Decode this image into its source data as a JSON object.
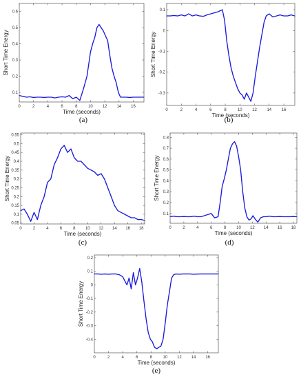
{
  "colors": {
    "series": "#1a1adc",
    "axes": "#555555"
  },
  "chart_data": [
    {
      "type": "line",
      "panel_label": "(a)",
      "xlabel": "Time (seconds)",
      "ylabel": "Short Time Energy",
      "xlim": [
        0,
        17.5
      ],
      "ylim": [
        0.04,
        0.65
      ],
      "xticks": [
        0,
        2,
        4,
        6,
        8,
        10,
        12,
        14,
        16
      ],
      "yticks": [
        0.1,
        0.2,
        0.3,
        0.4,
        0.5,
        0.6
      ],
      "x": [
        0,
        0.5,
        1,
        1.5,
        2,
        2.5,
        3,
        3.5,
        4,
        4.5,
        5,
        5.5,
        6,
        6.5,
        7,
        7.5,
        8,
        8.5,
        9,
        9.5,
        10,
        10.3,
        10.6,
        10.9,
        11.2,
        11.5,
        11.8,
        12.1,
        12.4,
        12.7,
        13,
        13.3,
        13.6,
        13.9,
        14.2,
        14.6,
        15,
        15.5,
        16,
        16.5,
        17,
        17.5
      ],
      "y": [
        0.08,
        0.075,
        0.07,
        0.072,
        0.068,
        0.07,
        0.07,
        0.068,
        0.07,
        0.07,
        0.065,
        0.07,
        0.072,
        0.07,
        0.08,
        0.06,
        0.07,
        0.05,
        0.12,
        0.2,
        0.35,
        0.4,
        0.44,
        0.5,
        0.52,
        0.5,
        0.48,
        0.45,
        0.42,
        0.33,
        0.25,
        0.2,
        0.16,
        0.1,
        0.07,
        0.07,
        0.07,
        0.068,
        0.07,
        0.07,
        0.07,
        0.07
      ]
    },
    {
      "type": "line",
      "panel_label": "(b)",
      "xlabel": "Time (seconds)",
      "ylabel": "Short Time Energy",
      "xlim": [
        0,
        17.5
      ],
      "ylim": [
        -0.36,
        0.13
      ],
      "xticks": [
        0,
        2,
        4,
        6,
        8,
        10,
        12,
        14,
        16
      ],
      "yticks": [
        -0.3,
        -0.2,
        -0.1,
        0,
        0.1
      ],
      "x": [
        0,
        0.5,
        1,
        1.5,
        2,
        2.5,
        3,
        3.5,
        4,
        4.5,
        5,
        5.5,
        6,
        6.5,
        7,
        7.3,
        7.6,
        7.9,
        8.2,
        8.5,
        8.8,
        9.1,
        9.4,
        9.7,
        10,
        10.3,
        10.6,
        10.9,
        11.2,
        11.5,
        11.8,
        12.1,
        12.4,
        12.7,
        13,
        13.3,
        13.6,
        14,
        14.5,
        15,
        15.5,
        16,
        16.5,
        17,
        17.5
      ],
      "y": [
        0.07,
        0.07,
        0.072,
        0.07,
        0.075,
        0.07,
        0.08,
        0.07,
        0.075,
        0.07,
        0.068,
        0.075,
        0.08,
        0.085,
        0.09,
        0.095,
        0.1,
        0.05,
        -0.05,
        -0.12,
        -0.18,
        -0.22,
        -0.25,
        -0.28,
        -0.3,
        -0.31,
        -0.33,
        -0.3,
        -0.32,
        -0.34,
        -0.3,
        -0.22,
        -0.15,
        -0.08,
        -0.02,
        0.04,
        0.07,
        0.08,
        0.065,
        0.07,
        0.075,
        0.07,
        0.07,
        0.075,
        0.07
      ]
    },
    {
      "type": "line",
      "panel_label": "(c)",
      "xlabel": "Time (seconds)",
      "ylabel": "Short Time Energy",
      "xlim": [
        0,
        18.5
      ],
      "ylim": [
        0.045,
        0.56
      ],
      "xticks": [
        0,
        2,
        4,
        6,
        8,
        10,
        12,
        14,
        16,
        18
      ],
      "yticks": [
        0.05,
        0.1,
        0.15,
        0.2,
        0.25,
        0.3,
        0.35,
        0.4,
        0.45,
        0.5,
        0.55
      ],
      "x": [
        0,
        0.5,
        1,
        1.5,
        2,
        2.5,
        3,
        3.5,
        4,
        4.5,
        5,
        5.5,
        6,
        6.5,
        7,
        7.5,
        8,
        8.5,
        9,
        9.5,
        10,
        10.5,
        11,
        11.5,
        12,
        12.5,
        13,
        13.5,
        14,
        14.5,
        15,
        15.5,
        16,
        16.5,
        17,
        17.5,
        18,
        18.5
      ],
      "y": [
        0.12,
        0.13,
        0.1,
        0.06,
        0.11,
        0.07,
        0.15,
        0.2,
        0.28,
        0.3,
        0.38,
        0.42,
        0.47,
        0.49,
        0.45,
        0.47,
        0.42,
        0.4,
        0.4,
        0.38,
        0.36,
        0.35,
        0.34,
        0.32,
        0.33,
        0.3,
        0.25,
        0.2,
        0.15,
        0.12,
        0.11,
        0.1,
        0.09,
        0.08,
        0.08,
        0.07,
        0.07,
        0.065
      ]
    },
    {
      "type": "line",
      "panel_label": "(d)",
      "xlabel": "Time (seconds)",
      "ylabel": "Short Time Energy",
      "xlim": [
        0,
        18.5
      ],
      "ylim": [
        0.01,
        0.84
      ],
      "xticks": [
        0,
        2,
        4,
        6,
        8,
        10,
        12,
        14,
        16,
        18
      ],
      "yticks": [
        0.1,
        0.2,
        0.3,
        0.4,
        0.5,
        0.6,
        0.7,
        0.8
      ],
      "x": [
        0,
        0.5,
        1,
        1.5,
        2,
        2.5,
        3,
        3.5,
        4,
        4.5,
        5,
        5.5,
        6,
        6.5,
        7,
        7.3,
        7.6,
        7.9,
        8.2,
        8.5,
        8.8,
        9.1,
        9.4,
        9.7,
        10,
        10.3,
        10.6,
        10.9,
        11.2,
        11.5,
        11.8,
        12.1,
        12.4,
        12.8,
        13.2,
        13.6,
        14,
        14.5,
        15,
        15.5,
        16,
        16.5,
        17,
        17.5,
        18,
        18.5
      ],
      "y": [
        0.07,
        0.075,
        0.07,
        0.07,
        0.072,
        0.07,
        0.07,
        0.075,
        0.07,
        0.07,
        0.08,
        0.09,
        0.1,
        0.06,
        0.07,
        0.2,
        0.35,
        0.42,
        0.5,
        0.6,
        0.7,
        0.74,
        0.76,
        0.72,
        0.62,
        0.5,
        0.3,
        0.15,
        0.07,
        0.04,
        0.05,
        0.08,
        0.05,
        0.02,
        0.06,
        0.07,
        0.07,
        0.075,
        0.07,
        0.07,
        0.072,
        0.07,
        0.07,
        0.07,
        0.072,
        0.07
      ]
    },
    {
      "type": "line",
      "panel_label": "(e)",
      "xlabel": "Time (seconds)",
      "ylabel": "Short Time Energy",
      "xlim": [
        0,
        17.5
      ],
      "ylim": [
        -0.5,
        0.22
      ],
      "xticks": [
        0,
        2,
        4,
        6,
        8,
        10,
        12,
        14,
        16
      ],
      "yticks": [
        -0.4,
        -0.3,
        -0.2,
        -0.1,
        0,
        0.1,
        0.2
      ],
      "x": [
        0,
        0.5,
        1,
        1.5,
        2,
        2.5,
        3,
        3.5,
        4,
        4.3,
        4.6,
        4.9,
        5.2,
        5.5,
        5.8,
        6.1,
        6.4,
        6.7,
        7,
        7.3,
        7.6,
        7.9,
        8.2,
        8.5,
        8.8,
        9.1,
        9.4,
        9.7,
        10,
        10.3,
        10.6,
        10.9,
        11.2,
        11.5,
        12,
        12.5,
        13,
        13.5,
        14,
        15,
        16,
        17,
        17.5
      ],
      "y": [
        0.08,
        0.08,
        0.078,
        0.08,
        0.078,
        0.08,
        0.08,
        0.075,
        0.06,
        0.03,
        0.0,
        0.05,
        -0.03,
        0.09,
        0.0,
        0.05,
        0.12,
        0.02,
        -0.12,
        -0.25,
        -0.35,
        -0.4,
        -0.42,
        -0.46,
        -0.47,
        -0.46,
        -0.45,
        -0.4,
        -0.28,
        -0.15,
        -0.05,
        0.05,
        0.075,
        0.08,
        0.078,
        0.08,
        0.08,
        0.08,
        0.078,
        0.08,
        0.08,
        0.08,
        0.08
      ]
    }
  ]
}
